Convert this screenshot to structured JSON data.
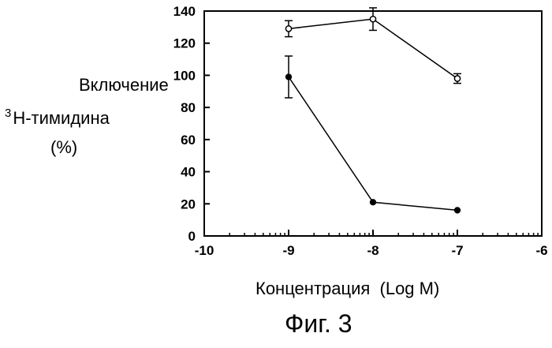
{
  "caption": "Фиг. 3",
  "chart_data": {
    "type": "scatter",
    "title": "",
    "ylabel_line1": "Включение",
    "ylabel_sup": "3",
    "ylabel_line2": "Н-тимидина",
    "ylabel_line3": "(%)",
    "xlabel": "Концентрация  (Log M)",
    "xlim": [
      -10,
      -6
    ],
    "ylim": [
      0,
      140
    ],
    "x_ticks": [
      -10,
      -9,
      -8,
      -7,
      -6
    ],
    "x_tick_labels": [
      "-10",
      "-9",
      "-8",
      "-7",
      "-6"
    ],
    "y_ticks": [
      0,
      20,
      40,
      60,
      80,
      100,
      120,
      140
    ],
    "y_tick_labels": [
      "0",
      "20",
      "40",
      "60",
      "80",
      "100",
      "120",
      "140"
    ],
    "x_scale_note": "log concentration with minor log ticks",
    "grid": false,
    "series": [
      {
        "marker": "open-circle",
        "x": [
          -9,
          -8,
          -7
        ],
        "y": [
          129,
          135,
          98
        ],
        "err": [
          5,
          7,
          3
        ]
      },
      {
        "marker": "filled-circle",
        "x": [
          -9,
          -8,
          -7
        ],
        "y": [
          99,
          21,
          16
        ],
        "err": [
          13,
          0,
          0
        ]
      }
    ]
  }
}
